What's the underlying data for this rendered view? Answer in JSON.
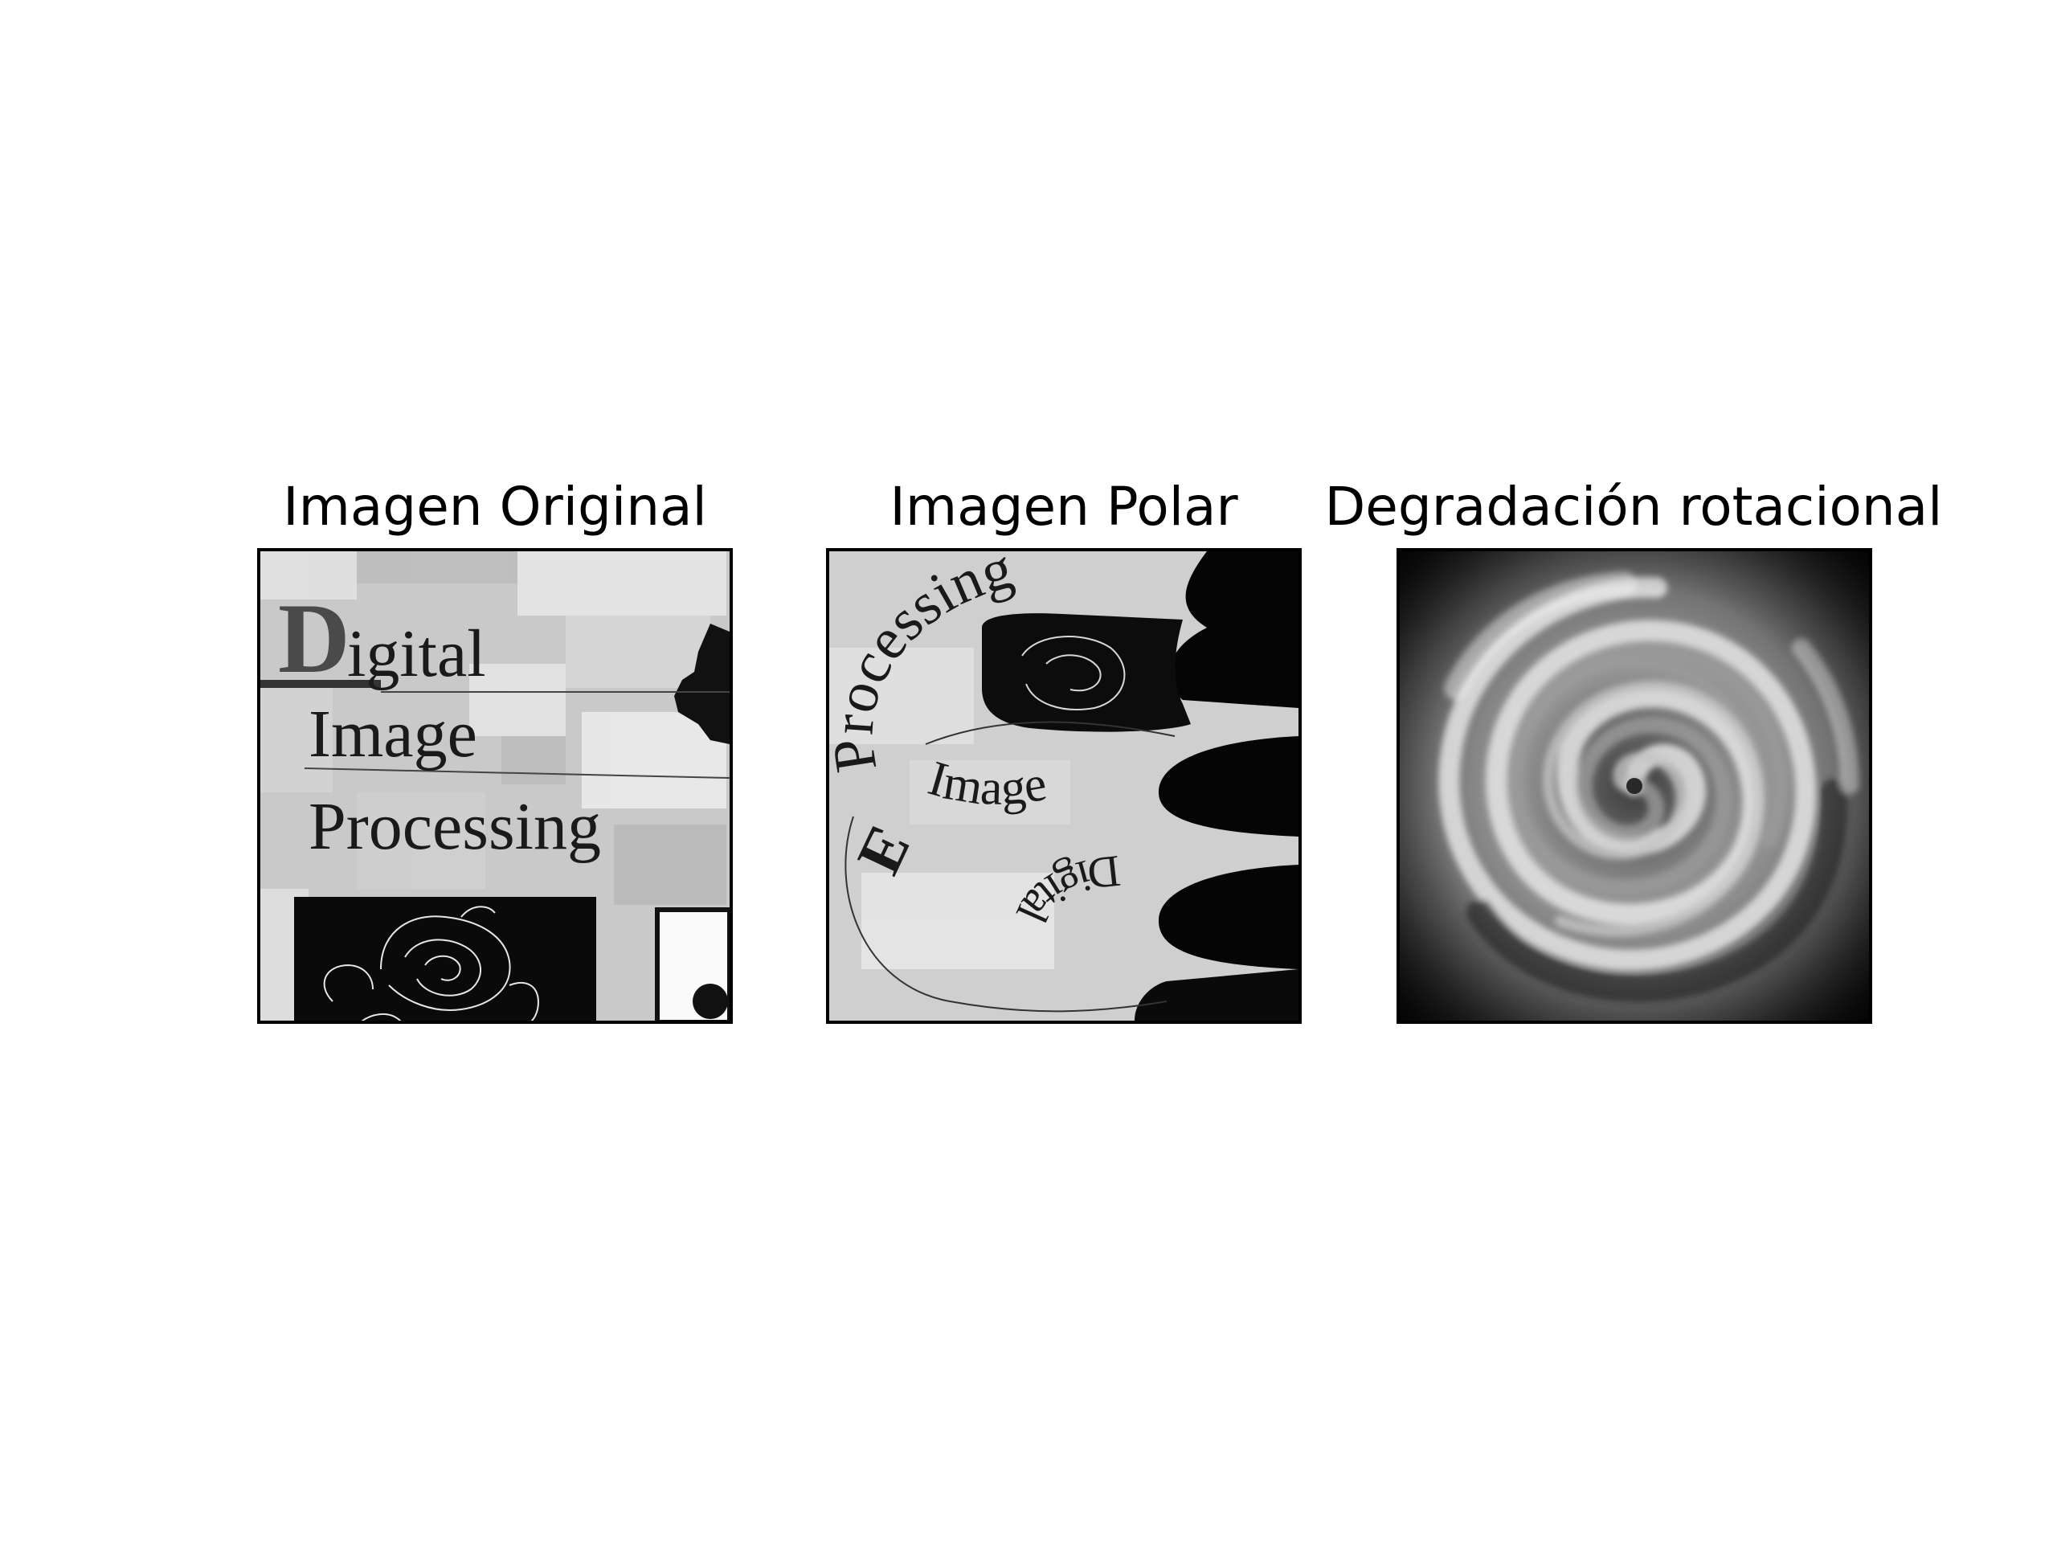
{
  "figure": {
    "panels": [
      {
        "title": "Imagen Original",
        "image": "Cover of the book Digital Image Processing: grayscale blocky background, large title text and a line drawing of a rose"
      },
      {
        "title": "Imagen Polar",
        "image": "Polar-transformed version of the book cover with curved text and a scalloped black region on the right"
      },
      {
        "title": "Degradación rotacional",
        "image": "Rotational blur of the cover producing a gray swirl spiral"
      }
    ],
    "cover_text": {
      "line1_initial": "D",
      "line1_rest": "igital",
      "line2": "Image",
      "line3": "Processing"
    },
    "polar_text": {
      "a": "Processing",
      "b": "Image",
      "c": "Digital"
    },
    "colors": {
      "frame": "#000000",
      "background": "#ffffff"
    }
  }
}
